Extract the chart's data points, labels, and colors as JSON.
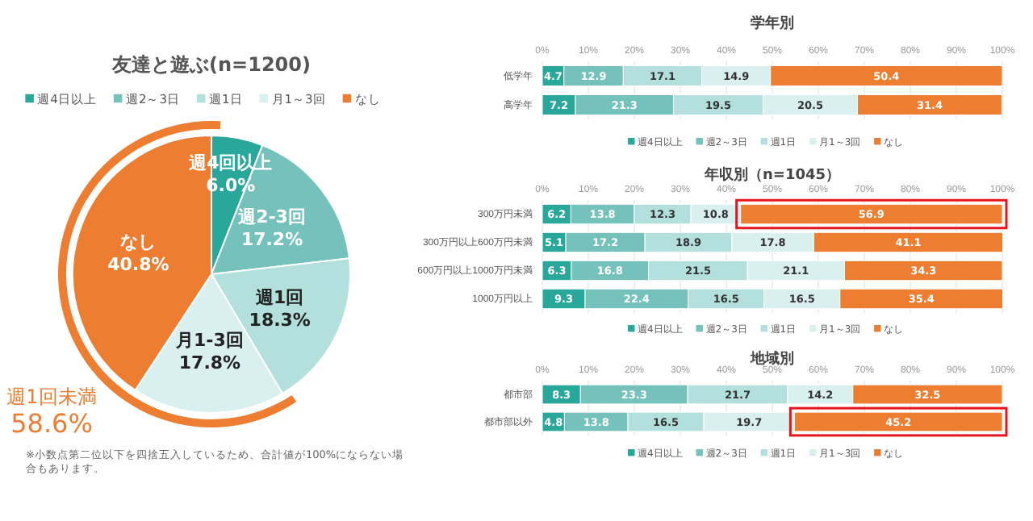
{
  "chart_data": [
    {
      "type": "pie",
      "title": "友達と遊ぶ(n=1200)",
      "categories": [
        "週4日以上",
        "週2～3日",
        "週1日",
        "月1～3回",
        "なし"
      ],
      "values": [
        6.0,
        17.2,
        18.3,
        17.8,
        40.8
      ],
      "colors": [
        "#2aa79b",
        "#74c2bb",
        "#b3e0dc",
        "#daeff0",
        "#ed7d31"
      ],
      "value_labels": [
        "週4回以上\n6.0%",
        "週2-3回\n17.2%",
        "週1回\n18.3%",
        "月1-3回\n17.8%",
        "なし\n40.8%"
      ],
      "legend": "top",
      "annotations": [
        "週1回未満\n58.6%",
        "※小数点第二位以下を四捨五入しているため、合計値が100%にならない場合もあります。"
      ]
    },
    {
      "type": "bar",
      "orientation": "horizontal",
      "stacked": true,
      "title": "学年別",
      "categories": [
        "低学年",
        "高学年"
      ],
      "series": [
        {
          "name": "週4日以上",
          "color": "#2aa79b",
          "values": [
            4.7,
            7.2
          ]
        },
        {
          "name": "週2～3日",
          "color": "#74c2bb",
          "values": [
            12.9,
            21.3
          ]
        },
        {
          "name": "週1日",
          "color": "#b3e0dc",
          "values": [
            17.1,
            19.5
          ]
        },
        {
          "name": "月1～3回",
          "color": "#daeff0",
          "values": [
            14.9,
            20.5
          ]
        },
        {
          "name": "なし",
          "color": "#ed7d31",
          "values": [
            50.4,
            31.4
          ]
        }
      ],
      "xlim": [
        0,
        100
      ],
      "xticks": [
        {
          "value": 0,
          "label": "0%"
        },
        {
          "value": 10,
          "label": "10%"
        },
        {
          "value": 20,
          "label": "20%"
        },
        {
          "value": 30,
          "label": "30%"
        },
        {
          "value": 40,
          "label": "40%"
        },
        {
          "value": 50,
          "label": "50%"
        },
        {
          "value": 60,
          "label": "60%"
        },
        {
          "value": 70,
          "label": "70%"
        },
        {
          "value": 80,
          "label": "80%"
        },
        {
          "value": 90,
          "label": "90%"
        },
        {
          "value": 100,
          "label": "100%"
        }
      ],
      "grid": "x",
      "legend": "bottom",
      "data_labels": true
    },
    {
      "type": "bar",
      "orientation": "horizontal",
      "stacked": true,
      "title": "年収別（n=1045）",
      "categories": [
        "300万円未満",
        "300万円以上600万円未満",
        "600万円以上1000万円未満",
        "1000万円以上"
      ],
      "series": [
        {
          "name": "週4日以上",
          "color": "#2aa79b",
          "values": [
            6.2,
            5.1,
            6.3,
            9.3
          ]
        },
        {
          "name": "週2～3日",
          "color": "#74c2bb",
          "values": [
            13.8,
            17.2,
            16.8,
            22.4
          ]
        },
        {
          "name": "週1日",
          "color": "#b3e0dc",
          "values": [
            12.3,
            18.9,
            21.5,
            16.5
          ]
        },
        {
          "name": "月1～3回",
          "color": "#daeff0",
          "values": [
            10.8,
            17.8,
            21.1,
            16.5
          ]
        },
        {
          "name": "なし",
          "color": "#ed7d31",
          "values": [
            56.9,
            41.1,
            34.3,
            35.4
          ]
        }
      ],
      "xlim": [
        0,
        100
      ],
      "xticks": [
        {
          "value": 0,
          "label": "0%"
        },
        {
          "value": 10,
          "label": "10%"
        },
        {
          "value": 20,
          "label": "20%"
        },
        {
          "value": 30,
          "label": "30%"
        },
        {
          "value": 40,
          "label": "40%"
        },
        {
          "value": 50,
          "label": "50%"
        },
        {
          "value": 60,
          "label": "60%"
        },
        {
          "value": 70,
          "label": "70%"
        },
        {
          "value": 80,
          "label": "80%"
        },
        {
          "value": 90,
          "label": "90%"
        },
        {
          "value": 100,
          "label": "100%"
        }
      ],
      "grid": "x",
      "legend": "bottom",
      "data_labels": true
    },
    {
      "type": "bar",
      "orientation": "horizontal",
      "stacked": true,
      "title": "地域別",
      "categories": [
        "都市部",
        "都市部以外"
      ],
      "series": [
        {
          "name": "週4日以上",
          "color": "#2aa79b",
          "values": [
            8.3,
            4.8
          ]
        },
        {
          "name": "週2～3日",
          "color": "#74c2bb",
          "values": [
            23.3,
            13.8
          ]
        },
        {
          "name": "週1日",
          "color": "#b3e0dc",
          "values": [
            21.7,
            16.5
          ]
        },
        {
          "name": "月1～3回",
          "color": "#daeff0",
          "values": [
            14.2,
            19.7
          ]
        },
        {
          "name": "なし",
          "color": "#ed7d31",
          "values": [
            32.5,
            45.2
          ]
        }
      ],
      "xlim": [
        0,
        100
      ],
      "xticks": [
        {
          "value": 0,
          "label": "0%"
        },
        {
          "value": 10,
          "label": "10%"
        },
        {
          "value": 20,
          "label": "20%"
        },
        {
          "value": 30,
          "label": "30%"
        },
        {
          "value": 40,
          "label": "40%"
        },
        {
          "value": 50,
          "label": "50%"
        },
        {
          "value": 60,
          "label": "60%"
        },
        {
          "value": 70,
          "label": "70%"
        },
        {
          "value": 80,
          "label": "80%"
        },
        {
          "value": 90,
          "label": "90%"
        },
        {
          "value": 100,
          "label": "100%"
        }
      ],
      "grid": "x",
      "legend": "bottom",
      "data_labels": true
    }
  ]
}
